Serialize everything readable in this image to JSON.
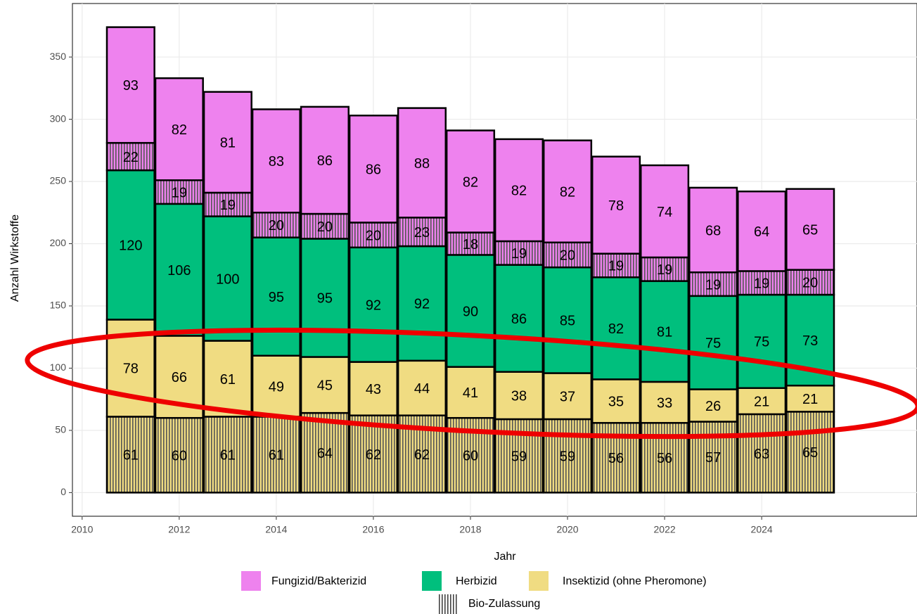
{
  "chart_data": {
    "type": "stacked_bar",
    "x_label": "Jahr",
    "y_label": "Anzahl Wirkstoffe",
    "x": [
      2011,
      2012,
      2013,
      2014,
      2015,
      2016,
      2017,
      2018,
      2019,
      2020,
      2021,
      2022,
      2023,
      2024,
      2025
    ],
    "series": [
      {
        "name": "Insektizid (ohne Pheromone)",
        "color": "#f0dc82",
        "hatched": true,
        "values": [
          61,
          60,
          61,
          61,
          64,
          62,
          62,
          60,
          59,
          59,
          56,
          56,
          57,
          63,
          65
        ]
      },
      {
        "name": "Insektizid (ohne Pheromone)",
        "color": "#f0dc82",
        "hatched": false,
        "values": [
          78,
          66,
          61,
          49,
          45,
          43,
          44,
          41,
          38,
          37,
          35,
          33,
          26,
          21,
          21
        ]
      },
      {
        "name": "Herbizid",
        "color": "#00bf7d",
        "hatched": false,
        "values": [
          120,
          106,
          100,
          95,
          95,
          92,
          92,
          90,
          86,
          85,
          82,
          81,
          75,
          75,
          73
        ]
      },
      {
        "name": "Fungizid/Bakterizid",
        "color": "#ee82ee",
        "hatched": true,
        "values": [
          22,
          19,
          19,
          20,
          20,
          20,
          23,
          18,
          19,
          20,
          19,
          19,
          19,
          19,
          20
        ]
      },
      {
        "name": "Fungizid/Bakterizid",
        "color": "#ee82ee",
        "hatched": false,
        "values": [
          93,
          82,
          81,
          83,
          86,
          86,
          88,
          82,
          82,
          82,
          78,
          74,
          68,
          64,
          65
        ]
      }
    ],
    "hatch_label": "Bio-Zulassung",
    "xlim": [
      2009.8,
      2027.2
    ],
    "xticks": [
      2010,
      2012,
      2014,
      2016,
      2018,
      2020,
      2022,
      2024
    ],
    "ylim": [
      -19,
      393
    ],
    "yticks": [
      0,
      50,
      100,
      150,
      200,
      250,
      300,
      350
    ],
    "grid": true
  }
}
